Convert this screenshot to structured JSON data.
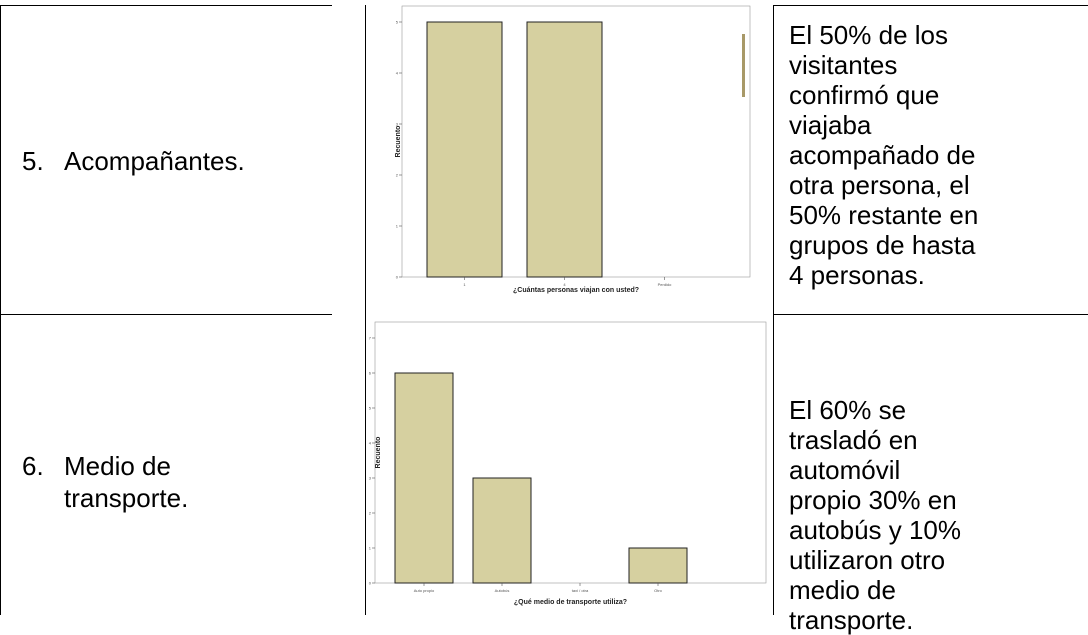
{
  "rows": [
    {
      "number": "5.",
      "label_line1": "Acompañantes.",
      "label_line2": "",
      "description": "El 50% de los visitantes confirmó que viajaba acompañado de otra persona, el 50% restante en grupos de hasta 4 personas."
    },
    {
      "number": "6.",
      "label_line1": "Medio de",
      "label_line2": "transporte.",
      "description": "El 60% se trasladó en automóvil propio 30% en autobús y 10% utilizaron otro medio de transporte."
    }
  ],
  "chart_data": [
    {
      "type": "bar",
      "xlabel": "¿Cuántas personas viajan con usted?",
      "ylabel": "Recuento",
      "categories": [
        "1",
        "4",
        "Perdido"
      ],
      "values": [
        5,
        5,
        0
      ],
      "ylim": [
        0,
        5
      ],
      "yticks": [
        0,
        1,
        2,
        3,
        4,
        5
      ],
      "grid": false,
      "bar_color": "#d6d0a0"
    },
    {
      "type": "bar",
      "xlabel": "¿Qué medio de transporte utiliza?",
      "ylabel": "Recuento",
      "categories": [
        "Auto propio",
        "Autobús",
        "taxi / otra",
        "Otro"
      ],
      "values": [
        6,
        3,
        0,
        1
      ],
      "ylim": [
        0,
        7
      ],
      "yticks": [
        0,
        1,
        2,
        3,
        4,
        5,
        6,
        7
      ],
      "grid": false,
      "bar_color": "#d6d0a0"
    }
  ]
}
